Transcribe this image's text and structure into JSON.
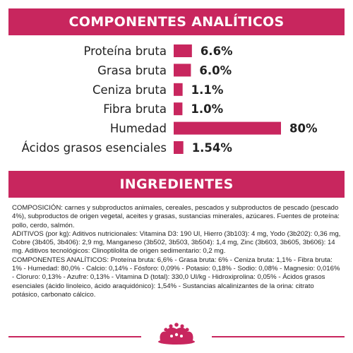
{
  "analytics": {
    "title": "COMPONENTES ANALÍTICOS",
    "items": [
      {
        "label": "Proteína bruta",
        "value": 6.6,
        "display": "6.6%"
      },
      {
        "label": "Grasa bruta",
        "value": 6.0,
        "display": "6.0%"
      },
      {
        "label": "Ceniza bruta",
        "value": 1.1,
        "display": "1.1%"
      },
      {
        "label": "Fibra bruta",
        "value": 1.0,
        "display": "1.0%"
      },
      {
        "label": "Humedad",
        "value": 80,
        "display": "80%"
      },
      {
        "label": "Ácidos grasos esenciales",
        "value": 1.54,
        "display": "1.54%"
      }
    ]
  },
  "ingredients": {
    "title": "INGREDIENTES",
    "paragraphs": [
      "COMPOSICIÓN: carnes y subproductos animales, cereales, pescados y subproductos de pescado (pescado 4%), subproductos de origen vegetal, aceites y grasas, sustancias minerales, azúcares. Fuentes de proteína: pollo, cerdo, salmón.",
      "ADITIVOS (por kg): Aditivos nutricionales: Vitamina D3: 190 UI, Hierro (3b103): 4 mg, Yodo (3b202): 0,36 mg, Cobre (3b405, 3b406): 2,9 mg, Manganeso (3b502, 3b503, 3b504): 1,4 mg, Zinc (3b603, 3b605, 3b606): 14 mg. Aditivos tecnológicos: Clinoptilolita de origen sedimentario: 0,2 mg.",
      "COMPONENTES ANALÍTICOS: Proteína bruta: 6,6% - Grasa bruta: 6% - Ceniza bruta: 1,1% - Fibra bruta: 1% - Humedad: 80,0% - Calcio: 0,14% - Fósforo: 0,09% - Potasio: 0,18% - Sodio: 0,08% - Magnesio: 0,016% - Cloruro: 0,13% - Azufre: 0,13% - Vitamina D (total): 330,0 UI/kg - Hidroxiprolina: 0,05% - Ácidos grasos esenciales (ácido linoleico, ácido araquidónico): 1,54% - Sustancias alcalinizantes de la orina: citrato potásico, carbonato cálcico."
    ]
  },
  "colors": {
    "accent": "#c8265e",
    "text": "#222222"
  },
  "footer": {
    "logo_icon": "royal-canin-crown-icon"
  }
}
